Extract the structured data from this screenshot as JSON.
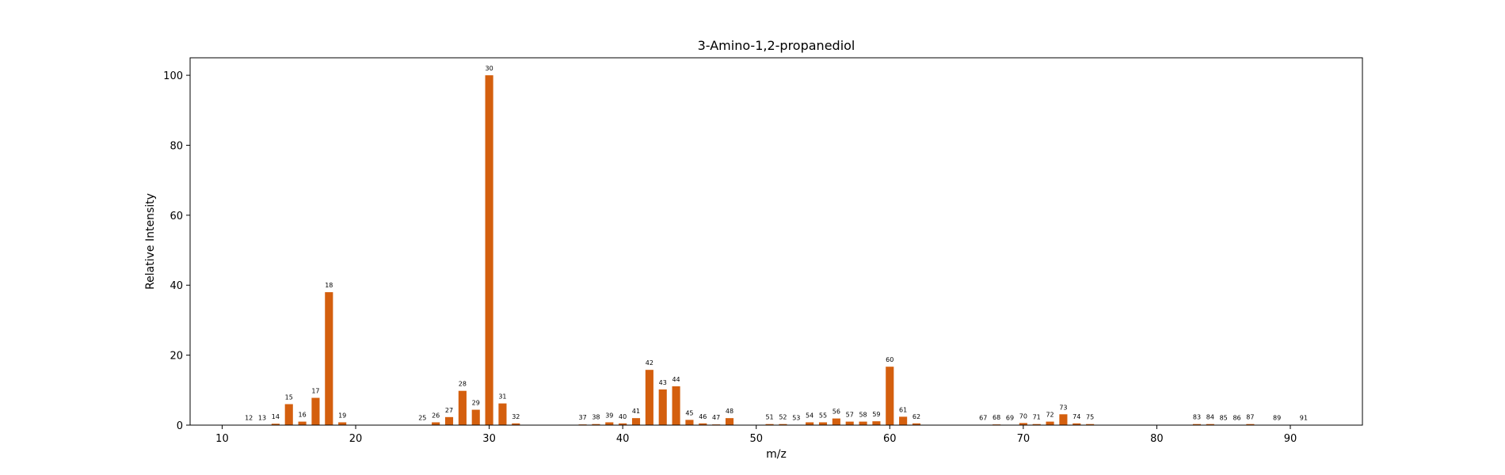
{
  "chart_data": {
    "type": "bar",
    "title": "3-Amino-1,2-propanediol",
    "xlabel": "m/z",
    "ylabel": "Relative Intensity",
    "xlim": [
      7.6,
      95.4
    ],
    "ylim": [
      0,
      105
    ],
    "xticks": [
      10,
      20,
      30,
      40,
      50,
      60,
      70,
      80,
      90
    ],
    "yticks": [
      0,
      20,
      40,
      60,
      80,
      100
    ],
    "bar_color": "#d45f0e",
    "grid": false,
    "x": [
      12,
      13,
      14,
      15,
      16,
      17,
      18,
      19,
      25,
      26,
      27,
      28,
      29,
      30,
      31,
      32,
      37,
      38,
      39,
      40,
      41,
      42,
      43,
      44,
      45,
      46,
      47,
      48,
      51,
      52,
      53,
      54,
      55,
      56,
      57,
      58,
      59,
      60,
      61,
      62,
      67,
      68,
      69,
      70,
      71,
      72,
      73,
      74,
      75,
      83,
      84,
      85,
      86,
      87,
      89,
      91
    ],
    "values": [
      0.1,
      0.1,
      0.4,
      6.0,
      1.0,
      7.8,
      38.0,
      0.8,
      0.1,
      0.8,
      2.3,
      9.8,
      4.4,
      100.0,
      6.2,
      0.5,
      0.2,
      0.3,
      0.8,
      0.5,
      2.0,
      15.8,
      10.2,
      11.1,
      1.5,
      0.5,
      0.2,
      2.0,
      0.3,
      0.3,
      0.1,
      0.8,
      0.8,
      1.9,
      1.0,
      1.0,
      1.1,
      16.7,
      2.4,
      0.5,
      0.1,
      0.2,
      0.1,
      0.6,
      0.3,
      1.0,
      3.1,
      0.5,
      0.3,
      0.3,
      0.3,
      0.1,
      0.1,
      0.3,
      0.1,
      0.1
    ],
    "labels": [
      "12",
      "13",
      "14",
      "15",
      "16",
      "17",
      "18",
      "19",
      "25",
      "26",
      "27",
      "28",
      "29",
      "30",
      "31",
      "32",
      "37",
      "38",
      "39",
      "40",
      "41",
      "42",
      "43",
      "44",
      "45",
      "46",
      "47",
      "48",
      "51",
      "52",
      "53",
      "54",
      "55",
      "56",
      "57",
      "58",
      "59",
      "60",
      "61",
      "62",
      "67",
      "68",
      "69",
      "70",
      "71",
      "72",
      "73",
      "74",
      "75",
      "83",
      "84",
      "85",
      "86",
      "87",
      "89",
      "91"
    ]
  }
}
